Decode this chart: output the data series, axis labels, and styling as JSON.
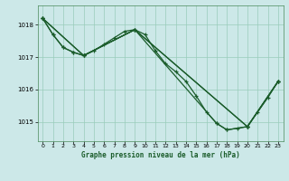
{
  "title": "Graphe pression niveau de la mer (hPa)",
  "background_color": "#cce8e8",
  "grid_color": "#99ccbb",
  "line_color": "#1a5c2a",
  "xlim": [
    -0.5,
    23.5
  ],
  "ylim": [
    1014.4,
    1018.6
  ],
  "yticks": [
    1015,
    1016,
    1017,
    1018
  ],
  "xticks": [
    0,
    1,
    2,
    3,
    4,
    5,
    6,
    7,
    8,
    9,
    10,
    11,
    12,
    13,
    14,
    15,
    16,
    17,
    18,
    19,
    20,
    21,
    22,
    23
  ],
  "line1_x": [
    0,
    1,
    2,
    3,
    4,
    5,
    6,
    7,
    8,
    9,
    10,
    11,
    12,
    13,
    14,
    15,
    16,
    17,
    18,
    19,
    20,
    21,
    22,
    23
  ],
  "line1_y": [
    1018.2,
    1017.7,
    1017.3,
    1017.15,
    1017.05,
    1017.2,
    1017.4,
    1017.6,
    1017.8,
    1017.85,
    1017.7,
    1017.2,
    1016.8,
    1016.55,
    1016.25,
    1015.8,
    1015.3,
    1014.95,
    1014.75,
    1014.8,
    1014.85,
    1015.3,
    1015.75,
    1016.25
  ],
  "line2_x": [
    0,
    1,
    2,
    3,
    4,
    9,
    20,
    23
  ],
  "line2_y": [
    1018.2,
    1017.7,
    1017.3,
    1017.15,
    1017.05,
    1017.85,
    1014.85,
    1016.25
  ],
  "line3_x": [
    0,
    4,
    9,
    20,
    23
  ],
  "line3_y": [
    1018.2,
    1017.05,
    1017.85,
    1014.85,
    1016.25
  ],
  "line4_x": [
    0,
    4,
    9,
    17,
    18,
    20,
    23
  ],
  "line4_y": [
    1018.2,
    1017.05,
    1017.85,
    1014.95,
    1014.75,
    1014.85,
    1016.25
  ]
}
